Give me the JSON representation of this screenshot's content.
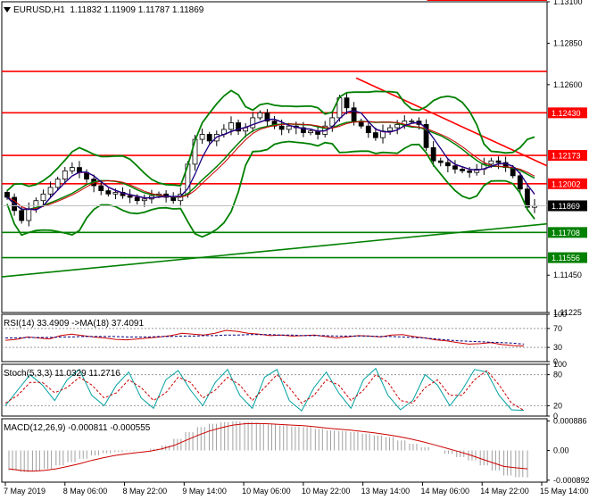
{
  "header": {
    "symbol": "EURUSD,H1",
    "ohlc": "1.11832 1.11909 1.11787 1.11869"
  },
  "rsi_header": {
    "text": "RSI(14) 33.4909  ->MA(18) 37.4091"
  },
  "stoch_header": {
    "text": "Stoch(5,3,3) 11.0329 11.2716"
  },
  "macd_header": {
    "text": "MACD(12,26,9) -0.000811 -0.000555"
  },
  "colors": {
    "candle": "#000000",
    "bollinger": "#008000",
    "level_lines": "#ff0000",
    "ma_red": "#cc0000",
    "ma_blue": "#000080",
    "ma_purple": "#800080",
    "rsi_main": "#cc0000",
    "rsi_ma": "#000080",
    "stoch_main": "#00a0a0",
    "stoch_signal": "#cc0000",
    "macd_hist": "#a0a0a0",
    "macd_signal": "#cc0000"
  },
  "chart_data": [
    {
      "type": "candlestick",
      "title": "EURUSD,H1",
      "ylim": [
        1.11225,
        1.131
      ],
      "y_ticks": [
        1.131,
        1.1285,
        1.126,
        1.1243,
        1.12173,
        1.12002,
        1.11869,
        1.11708,
        1.11556,
        1.1145,
        1.11225
      ],
      "x_tick_labels": [
        "7 May 2019",
        "8 May 06:00",
        "8 May 22:00",
        "9 May 14:00",
        "10 May 06:00",
        "10 May 22:00",
        "13 May 14:00",
        "14 May 06:00",
        "14 May 22:00",
        "15 May 14:00"
      ],
      "price_labels": [
        {
          "value": 1.1243,
          "text": "1.12430",
          "style": "red"
        },
        {
          "value": 1.12173,
          "text": "1.12173",
          "style": "red"
        },
        {
          "value": 1.12002,
          "text": "1.12002",
          "style": "red"
        },
        {
          "value": 1.11869,
          "text": "1.11869",
          "style": "black"
        },
        {
          "value": 1.11708,
          "text": "1.11708",
          "style": "green"
        },
        {
          "value": 1.11556,
          "text": "1.11556",
          "style": "green"
        }
      ],
      "horizontal_levels": [
        {
          "value": 1.1311,
          "color": "red"
        },
        {
          "value": 1.1268,
          "color": "red"
        },
        {
          "value": 1.1243,
          "color": "red"
        },
        {
          "value": 1.12173,
          "color": "red"
        },
        {
          "value": 1.12002,
          "color": "red"
        },
        {
          "value": 1.11708,
          "color": "green"
        },
        {
          "value": 1.11556,
          "color": "green"
        }
      ],
      "trendlines": [
        {
          "from": [
            0.0,
            1.1144
          ],
          "to": [
            1.0,
            1.1176
          ],
          "color": "green"
        },
        {
          "from": [
            0.65,
            1.1264
          ],
          "to": [
            1.0,
            1.1211
          ],
          "color": "red"
        }
      ],
      "close_series": [
        1.1192,
        1.1184,
        1.1178,
        1.1185,
        1.119,
        1.1194,
        1.1198,
        1.1203,
        1.1208,
        1.121,
        1.1207,
        1.1203,
        1.1199,
        1.1196,
        1.1194,
        1.1195,
        1.1193,
        1.1192,
        1.119,
        1.1191,
        1.1193,
        1.1194,
        1.1192,
        1.119,
        1.1194,
        1.1212,
        1.1227,
        1.123,
        1.1226,
        1.123,
        1.1233,
        1.1237,
        1.1232,
        1.1234,
        1.124,
        1.1243,
        1.1238,
        1.1235,
        1.1233,
        1.1235,
        1.1234,
        1.1231,
        1.1232,
        1.123,
        1.1235,
        1.124,
        1.1252,
        1.1246,
        1.1238,
        1.1235,
        1.1231,
        1.1228,
        1.1232,
        1.1234,
        1.1236,
        1.1238,
        1.1238,
        1.1236,
        1.1222,
        1.1214,
        1.1213,
        1.1211,
        1.1209,
        1.1208,
        1.1207,
        1.1209,
        1.1212,
        1.1214,
        1.1213,
        1.121,
        1.1205,
        1.1197,
        1.1186,
        1.1187
      ]
    },
    {
      "type": "line",
      "title": "RSI(14)",
      "ylim": [
        0,
        100
      ],
      "y_ticks": [
        100,
        70,
        30,
        0
      ],
      "series": [
        {
          "name": "RSI(14)",
          "values": [
            45,
            47,
            52,
            50,
            48,
            55,
            58,
            55,
            52,
            50,
            47,
            46,
            48,
            50,
            52,
            55,
            60,
            58,
            56,
            60,
            66,
            64,
            60,
            58,
            55,
            56,
            54,
            55,
            56,
            53,
            50,
            52,
            55,
            54,
            52,
            56,
            57,
            53,
            50,
            46,
            44,
            40,
            37,
            38,
            40,
            36,
            34,
            33
          ]
        },
        {
          "name": "MA(18)",
          "values": [
            50,
            50,
            51,
            51,
            51,
            52,
            52,
            53,
            53,
            53,
            53,
            52,
            52,
            52,
            53,
            53,
            54,
            54,
            55,
            55,
            56,
            56,
            57,
            57,
            57,
            56,
            56,
            55,
            55,
            55,
            54,
            54,
            54,
            54,
            53,
            53,
            52,
            51,
            50,
            48,
            46,
            44,
            43,
            42,
            41,
            40,
            39,
            37
          ]
        }
      ]
    },
    {
      "type": "line",
      "title": "Stoch(5,3,3)",
      "ylim": [
        0,
        100
      ],
      "y_ticks": [
        100,
        80,
        20,
        0
      ],
      "series": [
        {
          "name": "%K",
          "values": [
            20,
            50,
            80,
            60,
            30,
            70,
            90,
            40,
            20,
            60,
            85,
            35,
            15,
            70,
            88,
            50,
            20,
            65,
            90,
            40,
            15,
            75,
            90,
            30,
            10,
            55,
            85,
            45,
            15,
            70,
            92,
            40,
            12,
            30,
            80,
            60,
            20,
            50,
            90,
            85,
            40,
            12,
            11
          ]
        },
        {
          "name": "%D",
          "values": [
            25,
            40,
            65,
            65,
            45,
            55,
            75,
            60,
            35,
            45,
            70,
            55,
            30,
            45,
            75,
            65,
            35,
            50,
            75,
            60,
            30,
            55,
            80,
            55,
            25,
            40,
            70,
            60,
            30,
            50,
            80,
            65,
            30,
            25,
            55,
            70,
            40,
            40,
            70,
            88,
            60,
            25,
            11
          ]
        }
      ]
    },
    {
      "type": "bar",
      "title": "MACD(12,26,9)",
      "ylim": [
        -0.00095,
        0.00095
      ],
      "y_ticks": [
        0.000886,
        0.0,
        -0.000892
      ],
      "series": [
        {
          "name": "MACD",
          "values": [
            -0.0006,
            -0.00065,
            -0.00062,
            -0.00055,
            -0.00045,
            -0.00035,
            -0.00025,
            -0.00015,
            -8e-05,
            -5e-05,
            -2e-05,
            0.0,
            5e-05,
            0.00015,
            0.00035,
            0.00055,
            0.0007,
            0.0008,
            0.00085,
            0.00088,
            0.00086,
            0.00082,
            0.00078,
            0.00075,
            0.00072,
            0.0007,
            0.00065,
            0.0006,
            0.00058,
            0.00055,
            0.0005,
            0.00045,
            0.0004,
            0.0003,
            0.0002,
            0.0001,
            0.0,
            -0.0001,
            -0.0002,
            -0.0003,
            -0.00045,
            -0.0006,
            -0.00075,
            -0.0008,
            -0.00081
          ]
        },
        {
          "name": "Signal",
          "values": [
            -0.00055,
            -0.0006,
            -0.00062,
            -0.0006,
            -0.00055,
            -0.00048,
            -0.0004,
            -0.0003,
            -0.00022,
            -0.00015,
            -0.0001,
            -6e-05,
            -2e-05,
            5e-05,
            0.00015,
            0.0003,
            0.00045,
            0.00058,
            0.00068,
            0.00076,
            0.0008,
            0.00081,
            0.0008,
            0.00078,
            0.00076,
            0.00074,
            0.00071,
            0.00067,
            0.00064,
            0.00061,
            0.00057,
            0.00053,
            0.00048,
            0.00042,
            0.00035,
            0.00027,
            0.00018,
            8e-05,
            -2e-05,
            -0.00012,
            -0.00024,
            -0.00036,
            -0.00048,
            -0.00052,
            -0.00055
          ]
        }
      ]
    }
  ]
}
